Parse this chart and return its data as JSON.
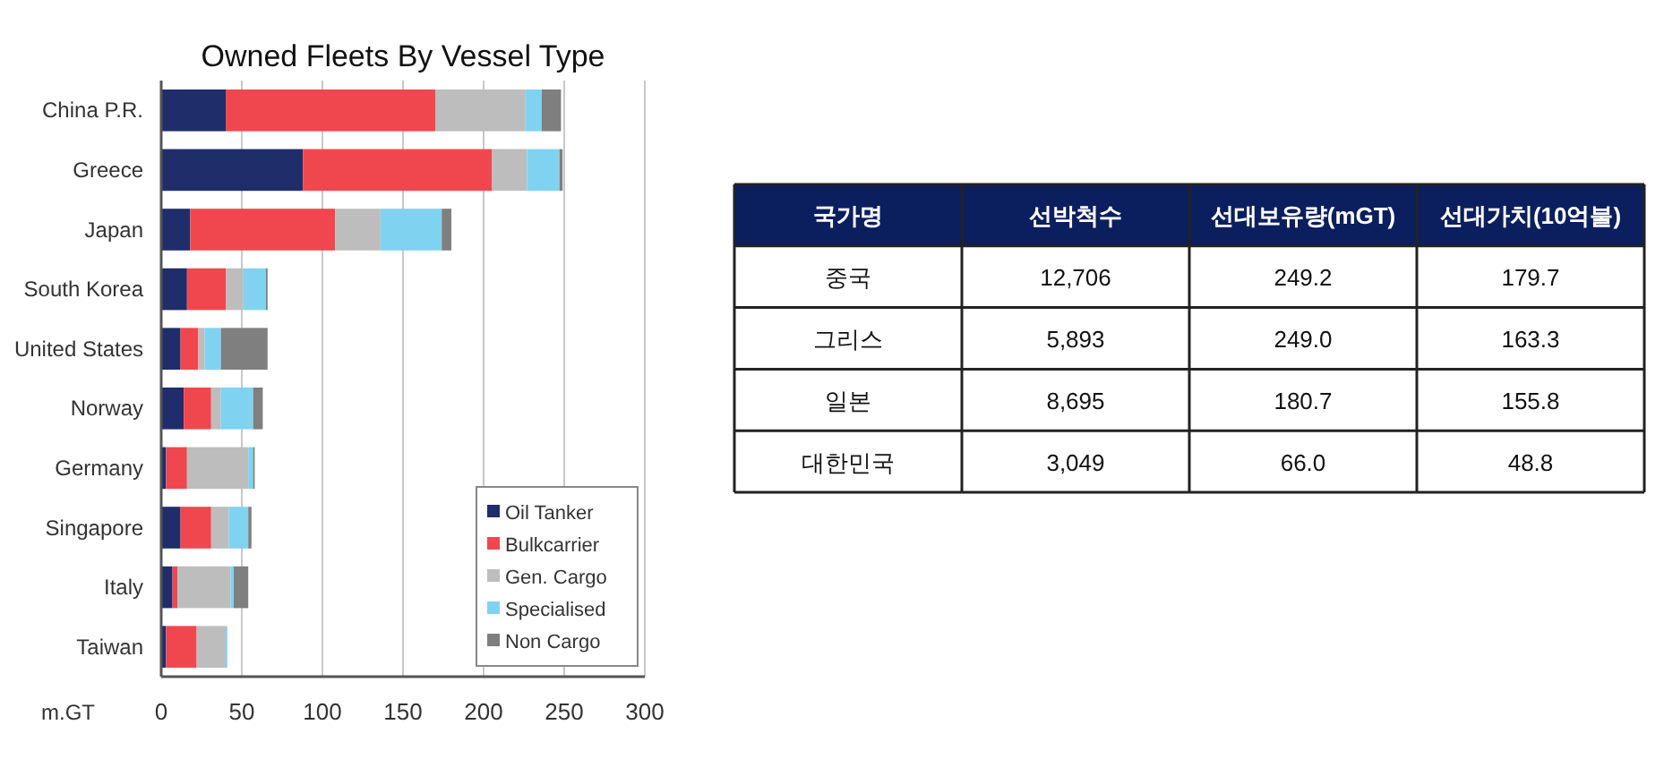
{
  "chart_data": [
    {
      "type": "bar",
      "orientation": "horizontal",
      "stacked": true,
      "title": "Owned Fleets By Vessel Type",
      "xlabel": "m.GT",
      "categories": [
        "China P.R.",
        "Greece",
        "Japan",
        "South Korea",
        "United States",
        "Norway",
        "Germany",
        "Singapore",
        "Italy",
        "Taiwan"
      ],
      "series": [
        {
          "name": "Oil Tanker",
          "color": "#1f2d6b",
          "values": [
            40,
            88,
            18,
            16,
            12,
            14,
            3,
            12,
            7,
            3
          ]
        },
        {
          "name": "Bulkcarrier",
          "color": "#f0474f",
          "values": [
            130,
            117,
            90,
            24,
            11,
            17,
            13,
            19,
            3,
            19
          ]
        },
        {
          "name": "Gen. Cargo",
          "color": "#bdbdbd",
          "values": [
            56,
            22,
            28,
            11,
            4,
            6,
            38,
            11,
            33,
            18
          ]
        },
        {
          "name": "Specialised",
          "color": "#7fd3f0",
          "values": [
            10,
            20,
            38,
            14,
            10,
            20,
            3,
            12,
            2,
            1
          ]
        },
        {
          "name": "Non Cargo",
          "color": "#7f7f7f",
          "values": [
            12,
            2,
            6,
            1,
            29,
            6,
            1,
            2,
            9,
            0
          ]
        }
      ],
      "xlim": [
        0,
        300
      ],
      "xticks": [
        0,
        50,
        100,
        150,
        200,
        250,
        300
      ],
      "grid": "x",
      "legend": "bottom right"
    },
    {
      "type": "other",
      "categories": [
        "국가명",
        "선박척수",
        "선대보유량(mGT)",
        "선대가치(10억불)"
      ],
      "annotations": [
        "중국",
        "12,706",
        "249.2",
        "179.7",
        "그리스",
        "5,893",
        "249.0",
        "163.3",
        "일본",
        "8,695",
        "180.7",
        "155.8",
        "대한민국",
        "3,049",
        "66.0",
        "48.8"
      ]
    }
  ]
}
